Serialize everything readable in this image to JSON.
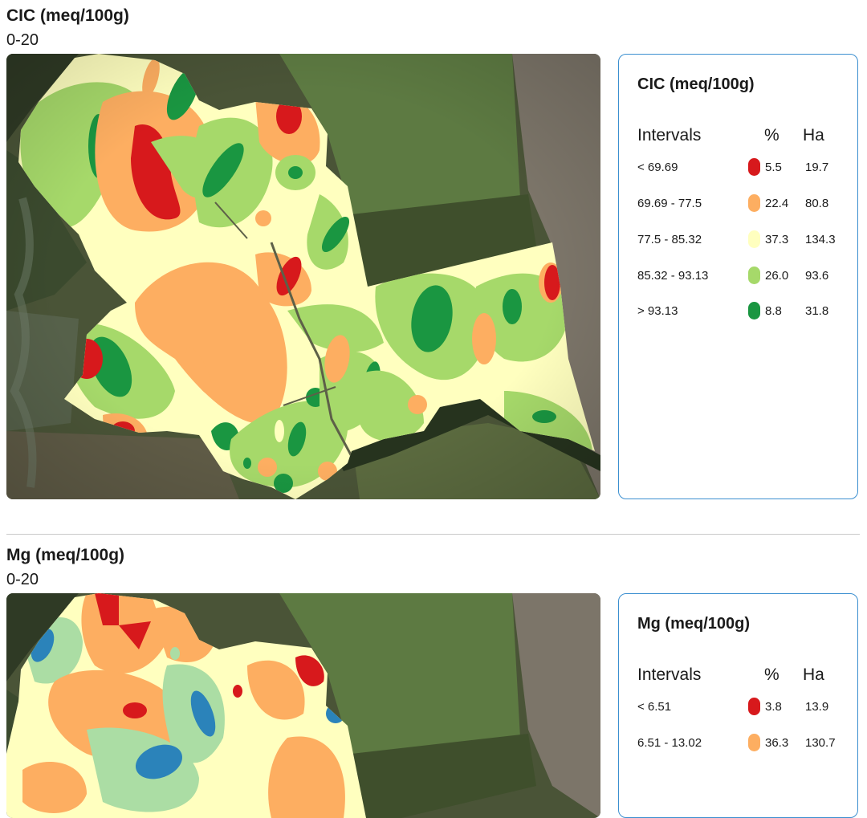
{
  "sections": [
    {
      "title": "CIC (meq/100g)",
      "depth": "0-20",
      "legend": {
        "title": "CIC (meq/100g)",
        "headers": {
          "intervals": "Intervals",
          "percent": "%",
          "ha": "Ha"
        },
        "rows": [
          {
            "interval": "< 69.69",
            "percent": "5.5",
            "ha": "19.7",
            "color": "#d7191c"
          },
          {
            "interval": "69.69 - 77.5",
            "percent": "22.4",
            "ha": "80.8",
            "color": "#fdae61"
          },
          {
            "interval": "77.5 - 85.32",
            "percent": "37.3",
            "ha": "134.3",
            "color": "#ffffbf"
          },
          {
            "interval": "85.32 - 93.13",
            "percent": "26.0",
            "ha": "93.6",
            "color": "#a6d96a"
          },
          {
            "interval": "> 93.13",
            "percent": "8.8",
            "ha": "31.8",
            "color": "#1a9641"
          }
        ]
      }
    },
    {
      "title": "Mg (meq/100g)",
      "depth": "0-20",
      "legend": {
        "title": "Mg (meq/100g)",
        "headers": {
          "intervals": "Intervals",
          "percent": "%",
          "ha": "Ha"
        },
        "rows": [
          {
            "interval": "< 6.51",
            "percent": "3.8",
            "ha": "13.9",
            "color": "#d7191c"
          },
          {
            "interval": "6.51 - 13.02",
            "percent": "36.3",
            "ha": "130.7",
            "color": "#fdae61"
          }
        ]
      }
    }
  ]
}
